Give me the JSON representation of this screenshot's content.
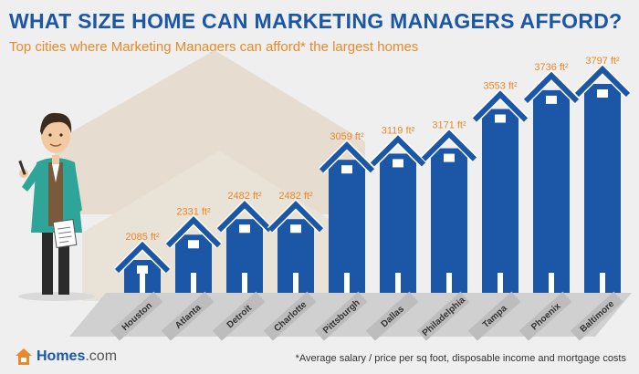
{
  "header": {
    "title": "WHAT SIZE HOME CAN MARKETING MANAGERS AFFORD?",
    "subtitle": "Top cities where Marketing Managers can afford* the largest homes"
  },
  "footer": {
    "logo_text": "Homes",
    "logo_suffix": ".com",
    "footnote": "*Average salary / price per sq foot, disposable income and mortgage costs"
  },
  "colors": {
    "bar": "#1b57a6",
    "accent": "#e8892b",
    "title": "#1b57a6",
    "background": "#efeff0",
    "base": "#8c8c8c"
  },
  "chart_data": {
    "type": "bar",
    "categories": [
      "Houston",
      "Atlanta",
      "Detroit",
      "Charlotte",
      "Pittsburgh",
      "Dallas",
      "Philadelphia",
      "Tampa",
      "Phoenix",
      "Baltimore"
    ],
    "values": [
      2085,
      2331,
      2482,
      2482,
      3059,
      3119,
      3171,
      3553,
      3736,
      3797
    ],
    "value_labels": [
      "2085 ft²",
      "2331 ft²",
      "2482 ft²",
      "2482 ft²",
      "3059 ft²",
      "3119 ft²",
      "3171 ft²",
      "3553 ft²",
      "3736 ft²",
      "3797 ft²"
    ],
    "unit": "ft²",
    "title": "WHAT SIZE HOME CAN MARKETING MANAGERS AFFORD?",
    "xlabel": "",
    "ylabel": ""
  }
}
